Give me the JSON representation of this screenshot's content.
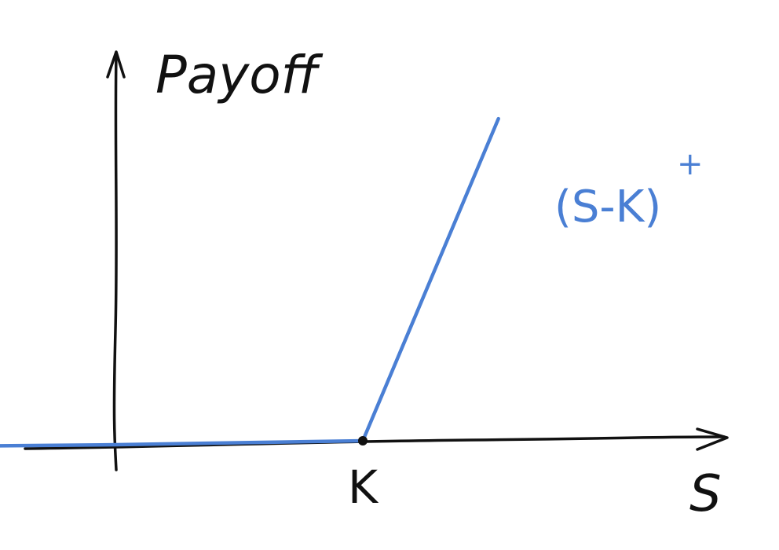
{
  "colors": {
    "ink": "#111111",
    "curve": "#4a7fd4",
    "background": "#ffffff"
  },
  "chart_data": {
    "type": "line",
    "title": "",
    "xlabel": "S",
    "ylabel": "Payoff",
    "series": [
      {
        "name": "(S-K)+",
        "points": [
          {
            "x": -1.0,
            "y": 0
          },
          {
            "x": 0.0,
            "y": 0
          },
          {
            "x": 1.0,
            "y": 0
          },
          {
            "x": 1.55,
            "y": 1.38
          }
        ]
      }
    ],
    "annotations": {
      "strike_label": "K",
      "strike_x": 1.0,
      "curve_label": "(S-K)",
      "curve_label_superscript": "+"
    },
    "xlim": [
      -1.0,
      2.3
    ],
    "ylim": [
      -0.4,
      1.7
    ],
    "grid": false,
    "legend": "none"
  }
}
